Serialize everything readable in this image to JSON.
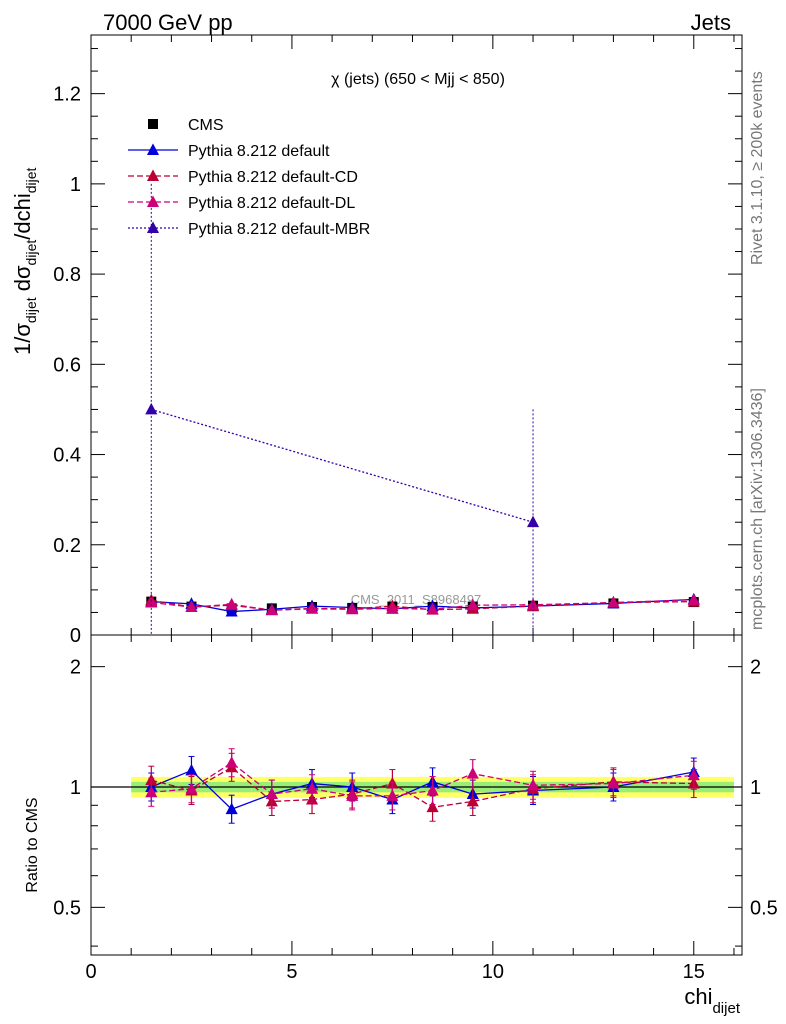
{
  "header": {
    "left": "7000 GeV pp",
    "right": "Jets",
    "side_top": "Rivet 3.1.10, ≥ 200k events",
    "side_bottom": "mcplots.cern.ch [arXiv:1306.3436]",
    "watermark": "CMS_2011_S8968497"
  },
  "chart_data": [
    {
      "type": "line",
      "panel": "main",
      "title": "χ (jets) (650 < Mjj <  850)",
      "ylabel": "1/σdijet dσdijet/dchidijet",
      "xlim": [
        0,
        16.2
      ],
      "ylim": [
        0,
        1.33
      ],
      "yticks": [
        0,
        0.2,
        0.4,
        0.6,
        0.8,
        1,
        1.2
      ],
      "ytick_labels": [
        "0",
        "0.2",
        "0.4",
        "0.6",
        "0.8",
        "1",
        "1.2"
      ],
      "legend_position": "top-left",
      "x": [
        1.5,
        2.5,
        3.5,
        4.5,
        5.5,
        6.5,
        7.5,
        8.5,
        9.5,
        11,
        13,
        15
      ],
      "series": [
        {
          "name": "CMS",
          "color": "#000000",
          "marker": "square",
          "line": "none",
          "values": [
            0.074,
            0.063,
            0.059,
            0.059,
            0.062,
            0.06,
            0.063,
            0.062,
            0.063,
            0.065,
            0.07,
            0.073
          ]
        },
        {
          "name": "Pythia 8.212 default",
          "color": "#0000dd",
          "marker": "triangle",
          "line": "solid",
          "values": [
            0.074,
            0.069,
            0.052,
            0.057,
            0.064,
            0.061,
            0.058,
            0.064,
            0.06,
            0.064,
            0.07,
            0.079
          ]
        },
        {
          "name": "Pythia 8.212 default-CD",
          "color": "#bb0033",
          "marker": "triangle",
          "line": "dashed",
          "values": [
            0.077,
            0.062,
            0.066,
            0.055,
            0.059,
            0.058,
            0.064,
            0.056,
            0.058,
            0.064,
            0.072,
            0.074
          ]
        },
        {
          "name": "Pythia 8.212 default-DL",
          "color": "#cc0077",
          "marker": "triangle",
          "line": "dashed",
          "values": [
            0.072,
            0.062,
            0.068,
            0.055,
            0.058,
            0.057,
            0.059,
            0.057,
            0.066,
            0.067,
            0.072,
            0.078
          ]
        },
        {
          "name": "Pythia 8.212 default-MBR",
          "color": "#3300aa",
          "marker": "triangle",
          "line": "dotted",
          "x": [
            1.5,
            11
          ],
          "values": [
            0.5,
            0.25
          ]
        }
      ]
    },
    {
      "type": "line",
      "panel": "ratio",
      "ylabel": "Ratio to CMS",
      "xlabel": "chidijet",
      "xlim": [
        0,
        16.2
      ],
      "ylim": [
        0.38,
        2.4
      ],
      "log_y": true,
      "xticks": [
        0,
        5,
        10,
        15
      ],
      "xtick_labels": [
        "0",
        "5",
        "10",
        "15"
      ],
      "yticks": [
        0.5,
        1,
        2
      ],
      "ytick_labels": [
        "0.5",
        "1",
        "2"
      ],
      "x": [
        1.5,
        2.5,
        3.5,
        4.5,
        5.5,
        6.5,
        7.5,
        8.5,
        9.5,
        11,
        13,
        15
      ],
      "band_color": "#ffff66",
      "band_inner_color": "#99ee77",
      "series": [
        {
          "name": "Pythia 8.212 default",
          "color": "#0000dd",
          "line": "solid",
          "values": [
            1.0,
            1.1,
            0.88,
            0.96,
            1.02,
            1.0,
            0.93,
            1.03,
            0.96,
            0.98,
            1.0,
            1.09
          ]
        },
        {
          "name": "Pythia 8.212 default-CD",
          "color": "#bb0033",
          "line": "dashed",
          "values": [
            1.04,
            0.98,
            1.12,
            0.92,
            0.93,
            0.96,
            1.02,
            0.89,
            0.92,
            0.99,
            1.03,
            1.02
          ]
        },
        {
          "name": "Pythia 8.212 default-DL",
          "color": "#cc0077",
          "line": "dashed",
          "values": [
            0.97,
            0.99,
            1.15,
            0.96,
            0.99,
            0.95,
            0.95,
            0.98,
            1.08,
            1.01,
            1.02,
            1.07
          ]
        }
      ]
    }
  ]
}
